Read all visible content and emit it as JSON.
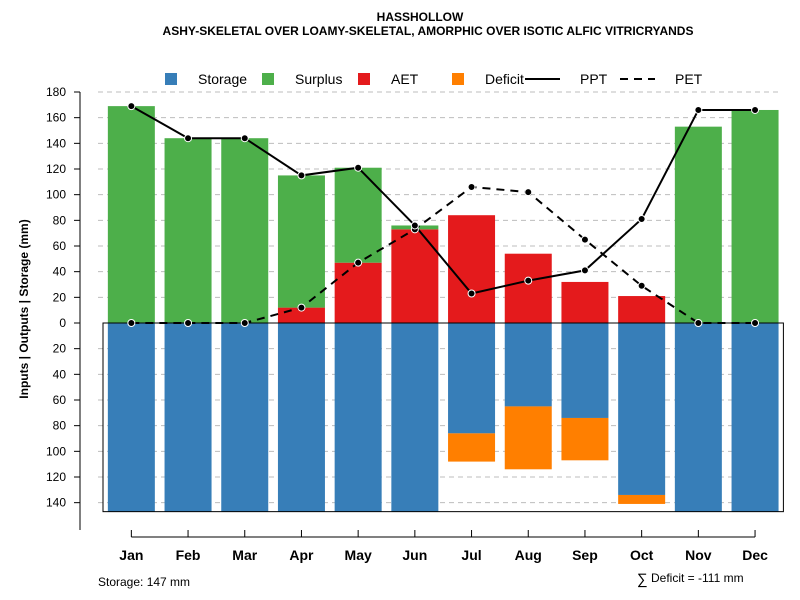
{
  "chart_data": {
    "type": "bar",
    "title": "HASSHOLLOW",
    "subtitle": "ASHY-SKELETAL OVER LOAMY-SKELETAL, AMORPHIC OVER ISOTIC ALFIC VITRICRYANDS",
    "ylabel": "Inputs | Outputs | Storage    (mm)",
    "categories": [
      "Jan",
      "Feb",
      "Mar",
      "Apr",
      "May",
      "Jun",
      "Jul",
      "Aug",
      "Sep",
      "Oct",
      "Nov",
      "Dec"
    ],
    "y_ticks_upper": [
      "180",
      "160",
      "140",
      "120",
      "100",
      "80",
      "60",
      "40",
      "20",
      "0"
    ],
    "y_ticks_lower": [
      "20",
      "40",
      "60",
      "80",
      "100",
      "120",
      "140"
    ],
    "ylim": [
      -147,
      180
    ],
    "grid": true,
    "legend": {
      "position": "top",
      "entries": [
        {
          "label": "Storage",
          "kind": "box",
          "color": "#377EB8"
        },
        {
          "label": "Surplus",
          "kind": "box",
          "color": "#4DAF4A"
        },
        {
          "label": "AET",
          "kind": "box",
          "color": "#E41A1C"
        },
        {
          "label": "Deficit",
          "kind": "box",
          "color": "#FF7F00"
        },
        {
          "label": "PPT",
          "kind": "solid"
        },
        {
          "label": "PET",
          "kind": "dashed"
        }
      ]
    },
    "colors": {
      "storage": "#377EB8",
      "surplus": "#4DAF4A",
      "aet": "#E41A1C",
      "deficit": "#FF7F00"
    },
    "series": [
      {
        "name": "Surplus",
        "values": [
          169,
          144,
          144,
          103,
          74,
          3,
          0,
          0,
          0,
          0,
          153,
          166
        ]
      },
      {
        "name": "AET",
        "values": [
          0,
          0,
          0,
          12,
          47,
          73,
          84,
          54,
          32,
          21,
          0,
          0
        ]
      },
      {
        "name": "Storage",
        "values": [
          147,
          147,
          147,
          147,
          147,
          147,
          86,
          65,
          74,
          134,
          147,
          147
        ]
      },
      {
        "name": "Deficit",
        "values": [
          0,
          0,
          0,
          0,
          0,
          0,
          22,
          49,
          33,
          7,
          0,
          0
        ]
      },
      {
        "name": "PPT",
        "values": [
          169,
          144,
          144,
          115,
          121,
          76,
          23,
          33,
          41,
          81,
          166,
          166
        ]
      },
      {
        "name": "PET",
        "values": [
          0,
          0,
          0,
          12,
          47,
          73,
          106,
          102,
          65,
          29,
          0,
          0
        ]
      }
    ],
    "storage_capacity_mm": 147
  },
  "footer": {
    "storage_note": "Storage: 147 mm",
    "deficit_symbol": "∑",
    "deficit_note": "Deficit = -111 mm"
  }
}
